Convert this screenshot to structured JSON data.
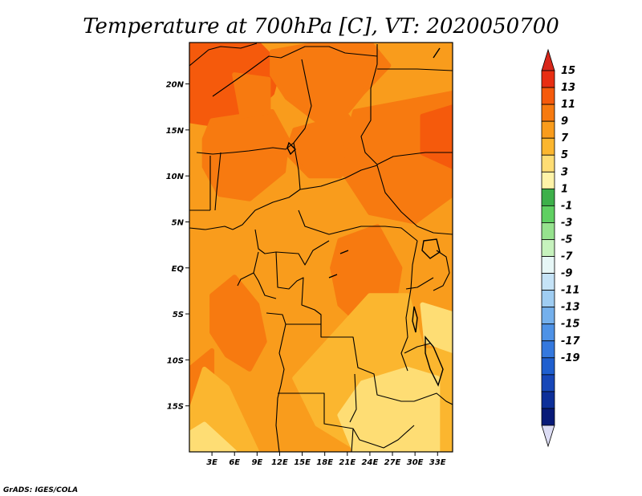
{
  "title": "Temperature at 700hPa [C], VT: 2020050700",
  "credit": "GrADS: IGES/COLA",
  "map": {
    "lon_range": [
      0,
      35
    ],
    "lat_range": [
      -20,
      24.5
    ],
    "x_ticks": [
      {
        "value": 3,
        "label": "3E"
      },
      {
        "value": 6,
        "label": "6E"
      },
      {
        "value": 9,
        "label": "9E"
      },
      {
        "value": 12,
        "label": "12E"
      },
      {
        "value": 15,
        "label": "15E"
      },
      {
        "value": 18,
        "label": "18E"
      },
      {
        "value": 21,
        "label": "21E"
      },
      {
        "value": 24,
        "label": "24E"
      },
      {
        "value": 27,
        "label": "27E"
      },
      {
        "value": 30,
        "label": "30E"
      },
      {
        "value": 33,
        "label": "33E"
      }
    ],
    "y_ticks": [
      {
        "value": 20,
        "label": "20N"
      },
      {
        "value": 15,
        "label": "15N"
      },
      {
        "value": 10,
        "label": "10N"
      },
      {
        "value": 5,
        "label": "5N"
      },
      {
        "value": 0,
        "label": "EQ"
      },
      {
        "value": -5,
        "label": "5S"
      },
      {
        "value": -10,
        "label": "10S"
      },
      {
        "value": -15,
        "label": "15S"
      }
    ]
  },
  "colorbar": {
    "levels": [
      {
        "label": "15",
        "color": "#e82e12"
      },
      {
        "label": "13",
        "color": "#f55a0c"
      },
      {
        "label": "11",
        "color": "#f77a10"
      },
      {
        "label": "9",
        "color": "#f99c1c"
      },
      {
        "label": "7",
        "color": "#fbb62f"
      },
      {
        "label": "5",
        "color": "#fedd74"
      },
      {
        "label": "3",
        "color": "#fff3a8"
      },
      {
        "label": "1",
        "color": "#3db04a"
      },
      {
        "label": "-1",
        "color": "#5fd062"
      },
      {
        "label": "-3",
        "color": "#96e28e"
      },
      {
        "label": "-5",
        "color": "#c6f2bd"
      },
      {
        "label": "-7",
        "color": "#e7f7f7"
      },
      {
        "label": "-9",
        "color": "#c5e3f7"
      },
      {
        "label": "-11",
        "color": "#9fcdf2"
      },
      {
        "label": "-13",
        "color": "#74b0ec"
      },
      {
        "label": "-15",
        "color": "#4e92e6"
      },
      {
        "label": "-17",
        "color": "#3478de"
      },
      {
        "label": "-19",
        "color": "#1f5fcf"
      },
      {
        "label": "",
        "color": "#1747b8"
      },
      {
        "label": "",
        "color": "#0d2f99"
      },
      {
        "label": "",
        "color": "#081a78"
      }
    ],
    "top_arrow_color": "#d8261a",
    "bottom_arrow_color": "#dcdcf4"
  },
  "temperature_regions": [
    {
      "level": "13",
      "points": [
        [
          0,
          24.5
        ],
        [
          9,
          24.5
        ],
        [
          12,
          22
        ],
        [
          11,
          19
        ],
        [
          7,
          16
        ],
        [
          4,
          15.5
        ],
        [
          0,
          16
        ]
      ]
    },
    {
      "level": "11",
      "points": [
        [
          11,
          23.5
        ],
        [
          18,
          24.5
        ],
        [
          24,
          24.5
        ],
        [
          26.5,
          22
        ],
        [
          23,
          19
        ],
        [
          21,
          17
        ],
        [
          17,
          16
        ],
        [
          13,
          18.5
        ],
        [
          11,
          21
        ]
      ]
    },
    {
      "level": "11",
      "points": [
        [
          3,
          16
        ],
        [
          11,
          17
        ],
        [
          13,
          14
        ],
        [
          12.5,
          10.5
        ],
        [
          8,
          7.5
        ],
        [
          4,
          8
        ],
        [
          2,
          11
        ],
        [
          2,
          14
        ]
      ]
    },
    {
      "level": "11",
      "points": [
        [
          14,
          15
        ],
        [
          21,
          16.5
        ],
        [
          23,
          14
        ],
        [
          20,
          10
        ],
        [
          16,
          10
        ],
        [
          13,
          12.5
        ]
      ]
    },
    {
      "level": "11",
      "points": [
        [
          22,
          17
        ],
        [
          35,
          19
        ],
        [
          35,
          8
        ],
        [
          30,
          5
        ],
        [
          24,
          6
        ],
        [
          20,
          11
        ]
      ]
    },
    {
      "level": "13",
      "points": [
        [
          31,
          16.5
        ],
        [
          35,
          17.5
        ],
        [
          35,
          11
        ],
        [
          31,
          12.5
        ]
      ]
    },
    {
      "level": "11",
      "points": [
        [
          6,
          21
        ],
        [
          10.5,
          20.5
        ],
        [
          10.5,
          17
        ],
        [
          7,
          16.5
        ]
      ]
    },
    {
      "level": "11",
      "points": [
        [
          20,
          3
        ],
        [
          25,
          4.5
        ],
        [
          28,
          0
        ],
        [
          27,
          -5
        ],
        [
          24,
          -7
        ],
        [
          20,
          -4
        ],
        [
          19,
          0
        ]
      ]
    },
    {
      "level": "11",
      "points": [
        [
          3,
          -3
        ],
        [
          6,
          -1
        ],
        [
          9,
          -4
        ],
        [
          10,
          -8
        ],
        [
          8,
          -11
        ],
        [
          5,
          -9.5
        ],
        [
          3,
          -7
        ]
      ]
    },
    {
      "level": "11",
      "points": [
        [
          0,
          -11
        ],
        [
          3,
          -9
        ],
        [
          3,
          -16
        ],
        [
          1.5,
          -19
        ],
        [
          0,
          -19
        ]
      ]
    },
    {
      "level": "7",
      "points": [
        [
          24,
          -3
        ],
        [
          29,
          -3
        ],
        [
          31,
          -9
        ],
        [
          35,
          -9
        ],
        [
          35,
          -20
        ],
        [
          23,
          -20
        ],
        [
          17,
          -17
        ],
        [
          14,
          -12
        ]
      ]
    },
    {
      "level": "7",
      "points": [
        [
          2,
          -11
        ],
        [
          5,
          -13
        ],
        [
          9,
          -20
        ],
        [
          0,
          -20
        ],
        [
          0,
          -16
        ]
      ]
    },
    {
      "level": "5",
      "points": [
        [
          23,
          -12.5
        ],
        [
          29,
          -11
        ],
        [
          33,
          -12
        ],
        [
          33,
          -20
        ],
        [
          22,
          -20
        ],
        [
          20,
          -16
        ]
      ]
    },
    {
      "level": "5",
      "points": [
        [
          2,
          -17
        ],
        [
          6,
          -20
        ],
        [
          0,
          -20
        ],
        [
          0,
          -18
        ]
      ]
    },
    {
      "level": "5",
      "points": [
        [
          31,
          -4
        ],
        [
          35,
          -5
        ],
        [
          35,
          -9
        ],
        [
          31.5,
          -8
        ]
      ]
    }
  ]
}
